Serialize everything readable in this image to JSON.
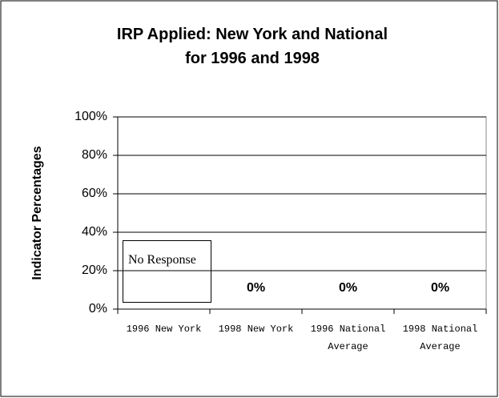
{
  "chart_data": {
    "type": "bar",
    "title": "IRP Applied: New York and National for 1996 and 1998",
    "y_label": "Indicator Percentages",
    "categories": [
      "1996 New York",
      "1998 New York",
      "1996 National Average",
      "1998 National Average"
    ],
    "values": [
      null,
      0,
      0,
      0
    ],
    "value_labels": [
      null,
      "0%",
      "0%",
      "0%"
    ],
    "annotation": "No Response",
    "color": "#000000",
    "ylim": [
      0,
      100
    ],
    "yticks": [
      {
        "value": 0,
        "label": "0%"
      },
      {
        "value": 20,
        "label": "20%"
      },
      {
        "value": 40,
        "label": "40%"
      },
      {
        "value": 60,
        "label": "60%"
      },
      {
        "value": 80,
        "label": "80%"
      },
      {
        "value": 100,
        "label": "100%"
      }
    ],
    "grid": true
  }
}
